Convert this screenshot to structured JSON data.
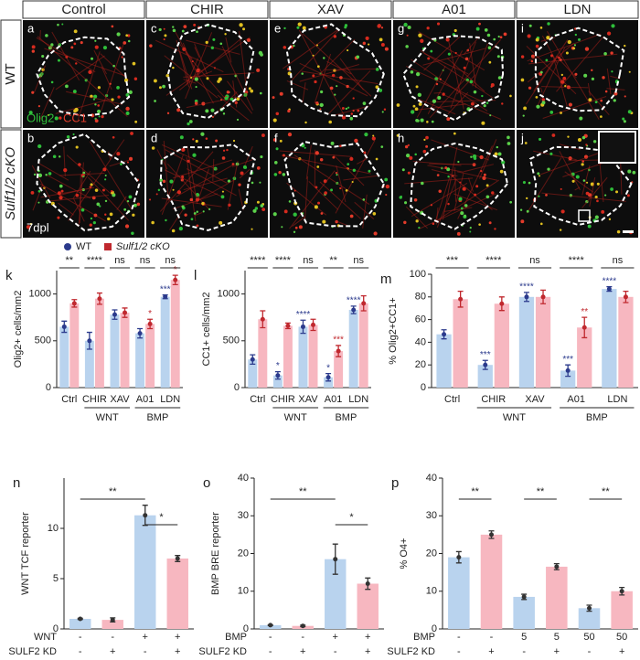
{
  "figure": {
    "columns": [
      "Control",
      "CHIR",
      "XAV",
      "A01",
      "LDN"
    ],
    "rows": [
      "WT",
      "Sulf1/2 cKO"
    ],
    "panels": [
      [
        "a",
        "c",
        "e",
        "g",
        "i"
      ],
      [
        "b",
        "d",
        "f",
        "h",
        "j"
      ]
    ],
    "stain": [
      "Olig2",
      "CC1"
    ],
    "time": "7dpl"
  },
  "chart_data": [
    {
      "type": "bar",
      "title": "k",
      "ylabel": "Olig2+ cells/mm2",
      "categories": [
        "Ctrl",
        "CHIR",
        "XAV",
        "A01",
        "LDN"
      ],
      "groups": [
        "WNT",
        "BMP"
      ],
      "ylim": [
        0,
        1250
      ],
      "yticks": [
        0,
        500,
        1000
      ],
      "comparisons": [
        "**",
        "****",
        "ns",
        "ns",
        "ns"
      ],
      "series": [
        {
          "name": "WT",
          "color": "#b9d3ee",
          "marker_color": "#2b3a8c",
          "values": [
            650,
            500,
            780,
            580,
            970
          ],
          "errors": [
            60,
            90,
            50,
            50,
            20
          ],
          "stars": [
            null,
            null,
            null,
            null,
            "***"
          ]
        },
        {
          "name": "Sulf1/2 cKO",
          "color": "#f7b7c0",
          "marker_color": "#c0282e",
          "values": [
            900,
            950,
            800,
            680,
            1150
          ],
          "errors": [
            40,
            60,
            50,
            50,
            50
          ],
          "stars": [
            null,
            null,
            null,
            "*",
            "*"
          ]
        }
      ]
    },
    {
      "type": "bar",
      "title": "l",
      "ylabel": "CC1+ cells/mm2",
      "categories": [
        "Ctrl",
        "CHIR",
        "XAV",
        "A01",
        "LDN"
      ],
      "groups": [
        "WNT",
        "BMP"
      ],
      "ylim": [
        0,
        1250
      ],
      "yticks": [
        0,
        500,
        1000
      ],
      "comparisons": [
        "****",
        "****",
        "ns",
        "**",
        "ns"
      ],
      "series": [
        {
          "color": "#b9d3ee",
          "marker_color": "#2b3a8c",
          "values": [
            300,
            130,
            650,
            110,
            830
          ],
          "errors": [
            50,
            40,
            70,
            40,
            40
          ],
          "stars": [
            null,
            "*",
            "****",
            "*",
            "****"
          ]
        },
        {
          "color": "#f7b7c0",
          "marker_color": "#c0282e",
          "values": [
            730,
            660,
            670,
            390,
            900
          ],
          "errors": [
            90,
            30,
            60,
            60,
            80
          ],
          "stars": [
            null,
            null,
            null,
            "***",
            null
          ]
        }
      ]
    },
    {
      "type": "bar",
      "title": "m",
      "ylabel": "% Olig2+CC1+",
      "categories": [
        "Ctrl",
        "CHIR",
        "XAV",
        "A01",
        "LDN"
      ],
      "groups": [
        "WNT",
        "BMP"
      ],
      "ylim": [
        0,
        100
      ],
      "yticks": [
        0,
        20,
        40,
        60,
        80,
        100
      ],
      "comparisons": [
        "***",
        "****",
        "ns",
        "****",
        "ns"
      ],
      "series": [
        {
          "color": "#b9d3ee",
          "marker_color": "#2b3a8c",
          "values": [
            47,
            20,
            80,
            15,
            87
          ],
          "errors": [
            4,
            4,
            4,
            5,
            2
          ],
          "stars": [
            null,
            "***",
            "****",
            "***",
            "****"
          ]
        },
        {
          "color": "#f7b7c0",
          "marker_color": "#c0282e",
          "values": [
            78,
            74,
            80,
            53,
            80
          ],
          "errors": [
            7,
            6,
            6,
            9,
            5
          ],
          "stars": [
            null,
            null,
            null,
            "**",
            null
          ]
        }
      ]
    },
    {
      "type": "bar",
      "title": "n",
      "ylabel": "WNT TCF reporter",
      "ylim": [
        0,
        15
      ],
      "yticks": [
        0,
        5,
        10
      ],
      "brackets": [
        "**",
        "*"
      ],
      "rows": [
        {
          "label": "WNT",
          "values": [
            "-",
            "-",
            "+",
            "+"
          ]
        },
        {
          "label": "SULF2 KD",
          "values": [
            "-",
            "+",
            "-",
            "+"
          ]
        }
      ],
      "series": [
        {
          "colors": [
            "#b9d3ee",
            "#f7b7c0",
            "#b9d3ee",
            "#f7b7c0"
          ],
          "marker_color": "#333333",
          "values": [
            1,
            0.9,
            11.3,
            7.0
          ],
          "errors": [
            0.05,
            0.2,
            1,
            0.3
          ]
        }
      ]
    },
    {
      "type": "bar",
      "title": "o",
      "ylabel": "BMP BRE reporter",
      "ylim": [
        0,
        40
      ],
      "yticks": [
        0,
        10,
        20,
        30,
        40
      ],
      "brackets": [
        "**",
        "*"
      ],
      "rows": [
        {
          "label": "BMP",
          "values": [
            "-",
            "-",
            "+",
            "+"
          ]
        },
        {
          "label": "SULF2 KD",
          "values": [
            "-",
            "+",
            "-",
            "+"
          ]
        }
      ],
      "series": [
        {
          "colors": [
            "#b9d3ee",
            "#f7b7c0",
            "#b9d3ee",
            "#f7b7c0"
          ],
          "marker_color": "#333333",
          "values": [
            1,
            0.8,
            18.5,
            12
          ],
          "errors": [
            0.1,
            0.2,
            4,
            1.5
          ]
        }
      ]
    },
    {
      "type": "bar",
      "title": "p",
      "ylabel": "% O4+",
      "ylim": [
        0,
        40
      ],
      "yticks": [
        0,
        10,
        20,
        30,
        40
      ],
      "brackets": [
        "**",
        "**",
        "**"
      ],
      "rows": [
        {
          "label": "BMP",
          "values": [
            "-",
            "-",
            "5",
            "5",
            "50",
            "50"
          ]
        },
        {
          "label": "SULF2 KD",
          "values": [
            "-",
            "+",
            "-",
            "+",
            "-",
            "+"
          ]
        }
      ],
      "series": [
        {
          "colors": [
            "#b9d3ee",
            "#f7b7c0",
            "#b9d3ee",
            "#f7b7c0",
            "#b9d3ee",
            "#f7b7c0"
          ],
          "marker_color": "#333333",
          "values": [
            19,
            25,
            8.5,
            16.5,
            5.5,
            10
          ],
          "errors": [
            1.5,
            1,
            0.7,
            0.8,
            0.8,
            1
          ]
        }
      ]
    }
  ]
}
